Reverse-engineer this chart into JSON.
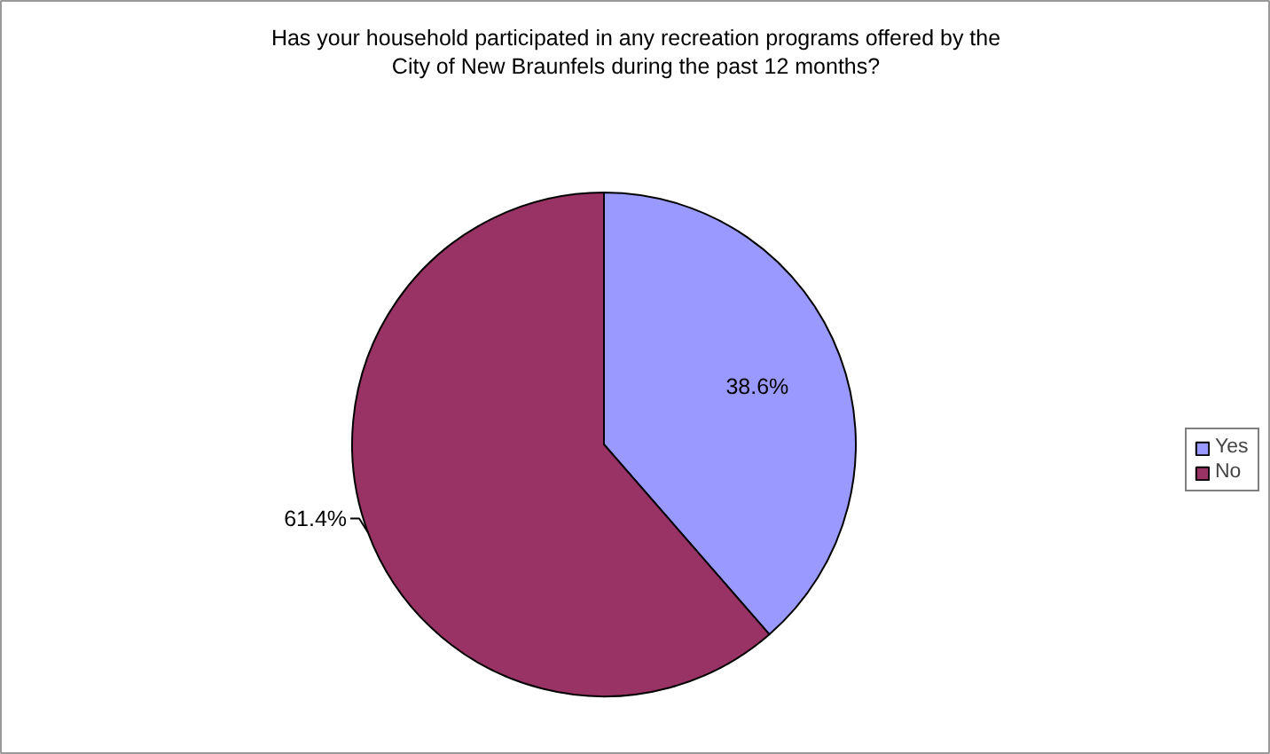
{
  "chart_data": {
    "type": "pie",
    "title": "Has your household participated in any recreation programs offered by the City of New Braunfels during the past 12 months?",
    "categories": [
      "Yes",
      "No"
    ],
    "values": [
      38.6,
      61.4
    ],
    "colors": [
      "#9999ff",
      "#993366"
    ],
    "value_labels": [
      "38.6%",
      "61.4%"
    ],
    "legend": "right"
  }
}
